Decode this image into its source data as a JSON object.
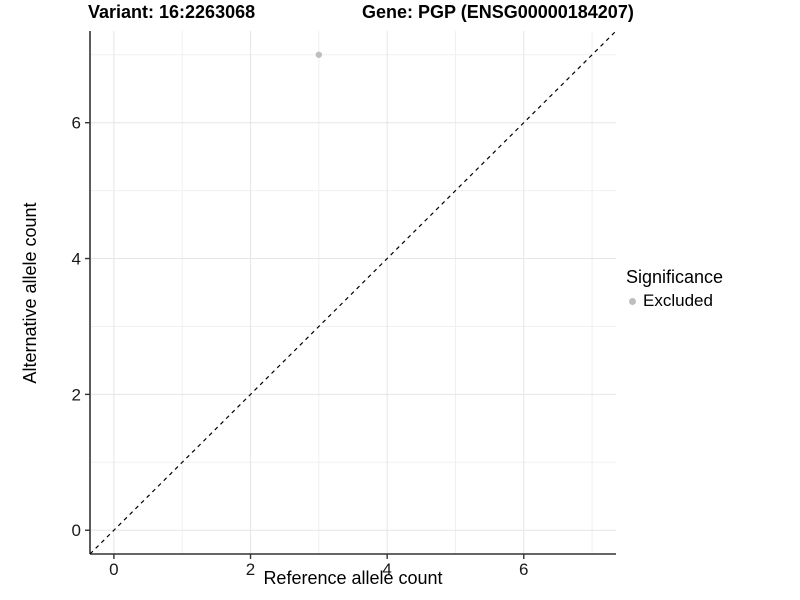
{
  "chart_data": {
    "type": "scatter",
    "title_parts": [
      "Variant: 16:2263068",
      "Gene: PGP (ENSG00000184207)"
    ],
    "xlabel": "Reference allele count",
    "ylabel": "Alternative allele count",
    "xlim": [
      -0.35,
      7.35
    ],
    "ylim": [
      -0.35,
      7.35
    ],
    "x_major_ticks": [
      0,
      2,
      4,
      6
    ],
    "y_major_ticks": [
      0,
      2,
      4,
      6
    ],
    "x_minor_gridlines": [
      1,
      3,
      5,
      7
    ],
    "y_minor_gridlines": [
      1,
      3,
      5,
      7
    ],
    "grid": "on",
    "series": [
      {
        "name": "Excluded",
        "color": "#bebebe",
        "points": [
          {
            "x": 3,
            "y": 7
          }
        ]
      }
    ],
    "reference_line": {
      "slope": 1,
      "intercept": 0,
      "linestyle": "dashed",
      "color": "#000000"
    },
    "legend": {
      "title": "Significance",
      "position": "right",
      "items": [
        {
          "label": "Excluded",
          "color": "#bebebe"
        }
      ]
    },
    "colors": {
      "background": "#ffffff",
      "gridline_major": "#e6e6e6",
      "gridline_minor": "#f0f0f0",
      "axis_line": "#333333",
      "tick_label": "#1a1a1a"
    }
  }
}
